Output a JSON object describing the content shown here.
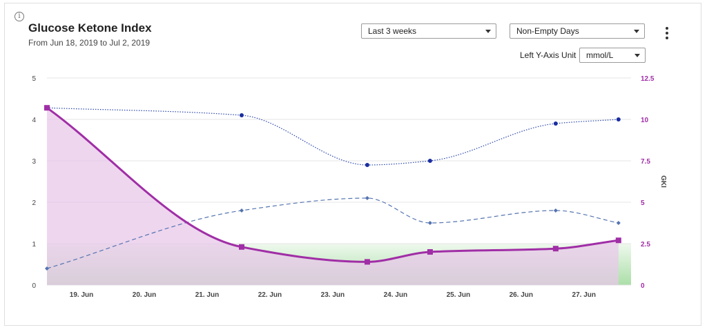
{
  "header": {
    "title": "Glucose Ketone Index",
    "subtitle": "From Jun 18, 2019 to Jul 2, 2019",
    "info_icon": "info-icon",
    "menu_icon": "more-vertical-icon"
  },
  "controls": {
    "range_value": "Last 3 weeks",
    "days_value": "Non-Empty Days",
    "unit_label": "Left Y-Axis Unit",
    "unit_value": "mmol/L"
  },
  "chart_data": {
    "type": "line",
    "x_ticks": [
      "19. Jun",
      "20. Jun",
      "21. Jun",
      "22. Jun",
      "23. Jun",
      "24. Jun",
      "25. Jun",
      "26. Jun",
      "27. Jun"
    ],
    "x_range": [
      18.55,
      27.85
    ],
    "y_left": {
      "range": [
        0,
        5
      ],
      "ticks": [
        0,
        1,
        2,
        3,
        4,
        5
      ]
    },
    "y_right": {
      "label": "GKI",
      "range": [
        0,
        12.5
      ],
      "ticks": [
        "0",
        "2.5",
        "5",
        "7.5",
        "10",
        "12.5"
      ],
      "color": "#a02ea6"
    },
    "grid": true,
    "target_zone": {
      "y_from": 0,
      "y_to": 1,
      "axis": "left",
      "color": "#8fd48a"
    },
    "series": [
      {
        "style": "dotted",
        "color": "#2743a8",
        "axis": "left",
        "x": [
          18.55,
          21.65,
          23.65,
          24.65,
          26.65,
          27.65
        ],
        "y": [
          4.28,
          4.1,
          2.9,
          3.0,
          3.9,
          4.0
        ]
      },
      {
        "style": "dashed",
        "color": "#5473b0",
        "axis": "left",
        "x": [
          18.55,
          21.65,
          23.65,
          24.65,
          26.65,
          27.65
        ],
        "y": [
          0.4,
          1.8,
          2.1,
          1.5,
          1.8,
          1.5
        ]
      },
      {
        "style": "solid",
        "color": "#a02ea6",
        "fill": "#e8c8ea",
        "axis": "right",
        "x": [
          18.55,
          21.65,
          23.65,
          24.65,
          26.65,
          27.65
        ],
        "y": [
          10.7,
          2.3,
          1.4,
          2.0,
          2.2,
          2.7
        ]
      }
    ]
  }
}
